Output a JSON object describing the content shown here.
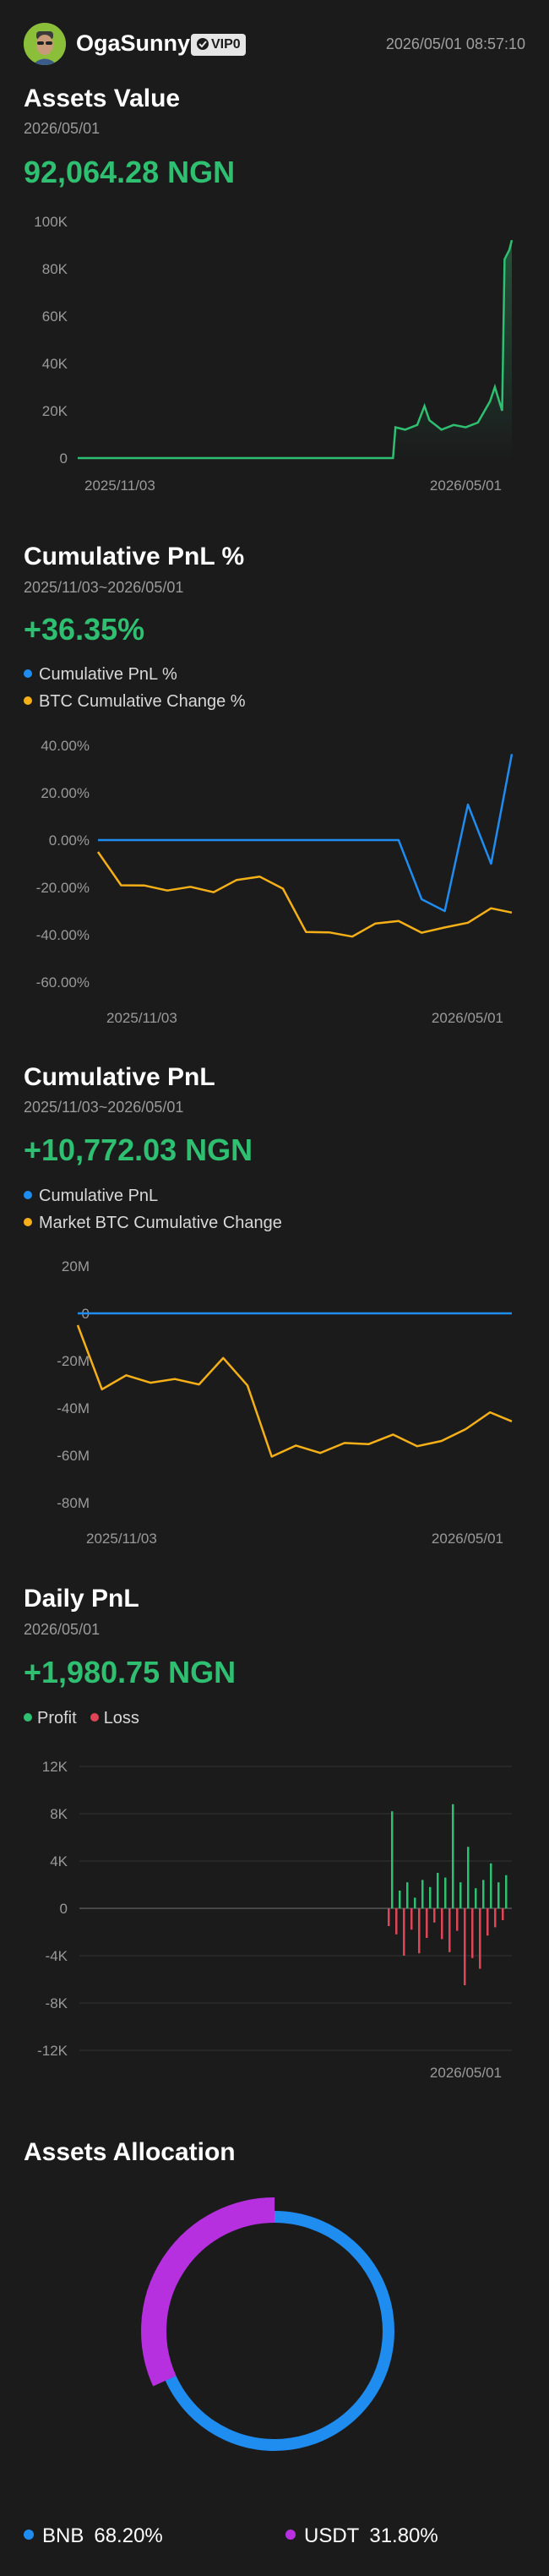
{
  "header": {
    "username": "OgaSunny",
    "vip_label": "VIP0",
    "timestamp": "2026/05/01 08:57:10"
  },
  "assets_value": {
    "title": "Assets Value",
    "date": "2026/05/01",
    "value": "92,064.28 NGN"
  },
  "cum_pnl_pct": {
    "title": "Cumulative PnL %",
    "date": "2025/11/03~2026/05/01",
    "value": "+36.35%",
    "legend": [
      "Cumulative PnL %",
      "BTC Cumulative Change %"
    ]
  },
  "cum_pnl": {
    "title": "Cumulative PnL",
    "date": "2025/11/03~2026/05/01",
    "value": "+10,772.03 NGN",
    "legend": [
      "Cumulative PnL",
      "Market BTC Cumulative Change"
    ]
  },
  "daily_pnl": {
    "title": "Daily PnL",
    "date": "2026/05/01",
    "value": "+1,980.75 NGN",
    "legend": [
      "Profit",
      "Loss"
    ]
  },
  "allocation": {
    "title": "Assets Allocation",
    "items": [
      {
        "asset": "BNB",
        "pct": "68.20%"
      },
      {
        "asset": "USDT",
        "pct": "31.80%"
      }
    ]
  },
  "colors": {
    "green": "#2fbf71",
    "blue": "#1f8cf0",
    "orange": "#f5b018",
    "red": "#e04457",
    "purple": "#b630e0"
  },
  "chart_data": [
    {
      "type": "area",
      "title": "",
      "x_ticks": [
        "2025/11/03",
        "2026/05/01"
      ],
      "y_ticks": [
        "0",
        "20K",
        "40K",
        "60K",
        "80K",
        "100K"
      ],
      "ylim": [
        0,
        100000
      ],
      "x": [
        0,
        130,
        131,
        135,
        140,
        143,
        145,
        150,
        155,
        160,
        165,
        170,
        172,
        175,
        176,
        178,
        179
      ],
      "series": [
        {
          "values": [
            0,
            0,
            13000,
            12000,
            14000,
            22000,
            16000,
            12000,
            14000,
            13000,
            15000,
            24000,
            30000,
            20000,
            84000,
            88000,
            92064
          ]
        }
      ]
    },
    {
      "type": "line",
      "title": "",
      "x_ticks": [
        "2025/11/03",
        "2026/05/01"
      ],
      "y_ticks": [
        "40.00%",
        "20.00%",
        "0.00%",
        "-20.00%",
        "-40.00%",
        "-60.00%"
      ],
      "ylim": [
        -60,
        40
      ],
      "x": [
        0,
        10,
        20,
        30,
        40,
        50,
        60,
        70,
        80,
        90,
        100,
        110,
        120,
        130,
        140,
        150,
        160,
        170,
        179
      ],
      "series": [
        {
          "name": "Cumulative PnL %",
          "values": [
            0,
            0,
            0,
            0,
            0,
            0,
            0,
            0,
            0,
            0,
            0,
            0,
            0,
            0,
            -25,
            -30,
            15,
            -10,
            36.35
          ]
        },
        {
          "name": "BTC Cumulative Change %",
          "values": [
            -5,
            -20,
            -18,
            -22,
            -20,
            -21,
            -18,
            -15,
            -20,
            -40,
            -38,
            -41,
            -36,
            -33,
            -40,
            -37,
            -34,
            -30,
            -30
          ]
        }
      ]
    },
    {
      "type": "line",
      "title": "",
      "x_ticks": [
        "2025/11/03",
        "2026/05/01"
      ],
      "y_ticks": [
        "20M",
        "0",
        "-20M",
        "-40M",
        "-60M",
        "-80M"
      ],
      "ylim": [
        -80,
        20
      ],
      "x": [
        0,
        10,
        20,
        30,
        40,
        50,
        60,
        70,
        80,
        90,
        100,
        110,
        120,
        130,
        140,
        150,
        160,
        170,
        179
      ],
      "series": [
        {
          "name": "Cumulative PnL",
          "values": [
            0,
            0,
            0,
            0,
            0,
            0,
            0,
            0,
            0,
            0,
            0,
            0,
            0,
            0,
            0,
            0,
            0,
            0,
            0
          ]
        },
        {
          "name": "Market BTC Cumulative Change",
          "values": [
            -5,
            -33,
            -25,
            -30,
            -28,
            -29,
            -20,
            -30,
            -60,
            -57,
            -58,
            -55,
            -56,
            -50,
            -57,
            -54,
            -48,
            -43,
            -45
          ]
        }
      ]
    },
    {
      "type": "bar",
      "title": "",
      "x_ticks": [
        "2026/05/01"
      ],
      "y_ticks": [
        "12K",
        "8K",
        "4K",
        "0",
        "-4K",
        "-8K",
        "-12K"
      ],
      "ylim": [
        -12000,
        12000
      ],
      "series": [
        {
          "name": "Profit",
          "values": [
            8200,
            1500,
            2200,
            900,
            2400,
            1800,
            3000,
            2600,
            8800,
            2200,
            5200,
            1700,
            2400,
            3800,
            2200,
            2800
          ]
        },
        {
          "name": "Loss",
          "values": [
            -1500,
            -2200,
            -4000,
            -1800,
            -3800,
            -2500,
            -1200,
            -2600,
            -3700,
            -1900,
            -6500,
            -4200,
            -5100,
            -2300,
            -1600,
            -1000
          ]
        }
      ]
    },
    {
      "type": "pie",
      "title": "",
      "categories": [
        "BNB",
        "USDT"
      ],
      "values": [
        68.2,
        31.8
      ]
    }
  ]
}
